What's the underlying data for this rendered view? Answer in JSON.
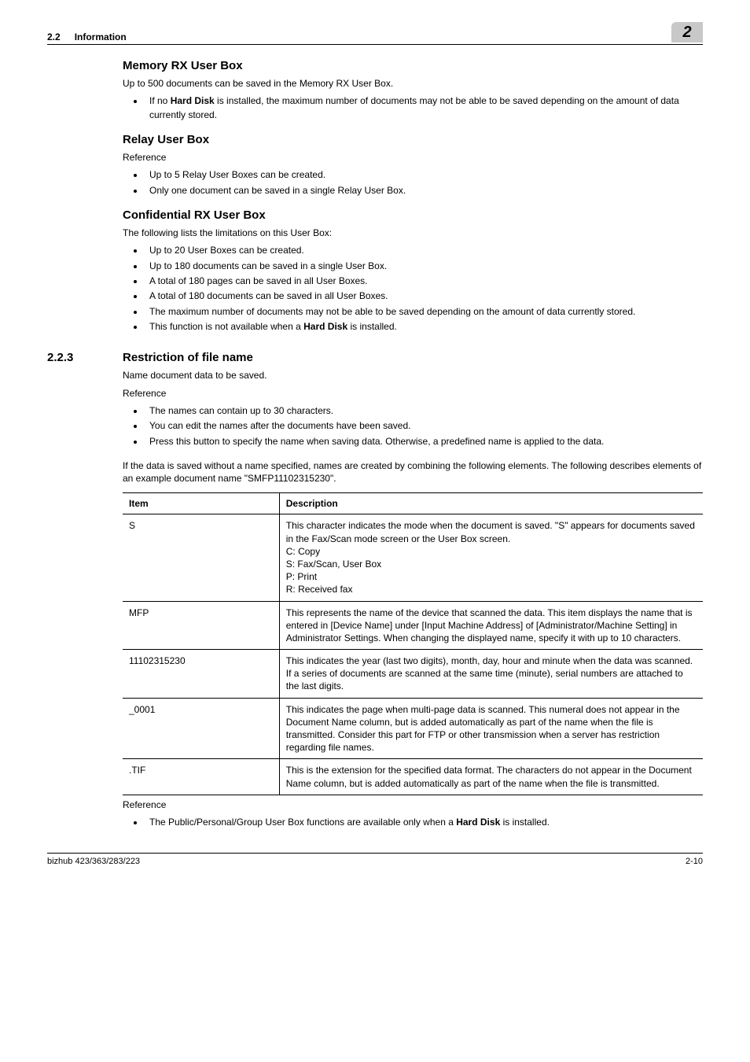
{
  "header": {
    "section_number": "2.2",
    "section_title": "Information",
    "chapter_badge": "2"
  },
  "memory_rx": {
    "title": "Memory RX User Box",
    "intro": "Up to 500 documents can be saved in the Memory RX User Box.",
    "bullets": [
      "If no <b>Hard Disk</b> is installed, the maximum number of documents may not be able to be saved depending on the amount of data currently stored."
    ]
  },
  "relay": {
    "title": "Relay User Box",
    "ref_label": "Reference",
    "bullets": [
      "Up to 5 Relay User Boxes can be created.",
      "Only one document can be saved in a single Relay User Box."
    ]
  },
  "confidential": {
    "title": "Confidential RX User Box",
    "intro": "The following lists the limitations on this User Box:",
    "bullets": [
      "Up to 20 User Boxes can be created.",
      "Up to 180 documents can be saved in a single User Box.",
      "A total of 180 pages can be saved in all User Boxes.",
      "A total of 180 documents can be saved in all User Boxes.",
      "The maximum number of documents may not be able to be saved depending on the amount of data currently stored.",
      "This function is not available when a <b>Hard Disk</b> is installed."
    ]
  },
  "restriction": {
    "number": "2.2.3",
    "title": "Restriction of file name",
    "intro": "Name document data to be saved.",
    "ref_label": "Reference",
    "bullets": [
      "The names can contain up to 30 characters.",
      "You can edit the names after the documents have been saved.",
      "Press this button to specify the name when saving data. Otherwise, a predefined name is applied to the data."
    ],
    "after_bullets": "If the data is saved without a name specified, names are created by combining the following elements. The following describes elements of an example document name \"SMFP11102315230\".",
    "table": {
      "headers": [
        "Item",
        "Description"
      ],
      "rows": [
        {
          "item": "S",
          "desc": "This character indicates the mode when the document is saved. \"S\" appears for documents saved in the Fax/Scan mode screen or the User Box screen.<br>C: Copy<br>S: Fax/Scan, User Box<br>P: Print<br>R: Received fax"
        },
        {
          "item": "MFP",
          "desc": "This represents the name of the device that scanned the data. This item displays the name that is entered in [Device Name] under [Input Machine Address] of [Administrator/Machine Setting] in Administrator Settings. When changing the displayed name, specify it with up to 10 characters."
        },
        {
          "item": "11102315230",
          "desc": "This indicates the year (last two digits), month, day, hour and minute when the data was scanned. If a series of documents are scanned at the same time (minute), serial numbers are attached to the last digits."
        },
        {
          "item": "_0001",
          "desc": "This indicates the page when multi-page data is scanned. This numeral does not appear in the Document Name column, but is added automatically as part of the name when the file is transmitted. Consider this part for FTP or other transmission when a server has restriction regarding file names."
        },
        {
          "item": ".TIF",
          "desc": "This is the extension for the specified data format. The characters do not appear in the Document Name column, but is added automatically as part of the name when the file is transmitted."
        }
      ]
    },
    "ref2_label": "Reference",
    "ref2_bullets": [
      "The Public/Personal/Group User Box functions are available only when a <b>Hard Disk</b> is installed."
    ]
  },
  "footer": {
    "left": "bizhub 423/363/283/223",
    "right": "2-10"
  }
}
